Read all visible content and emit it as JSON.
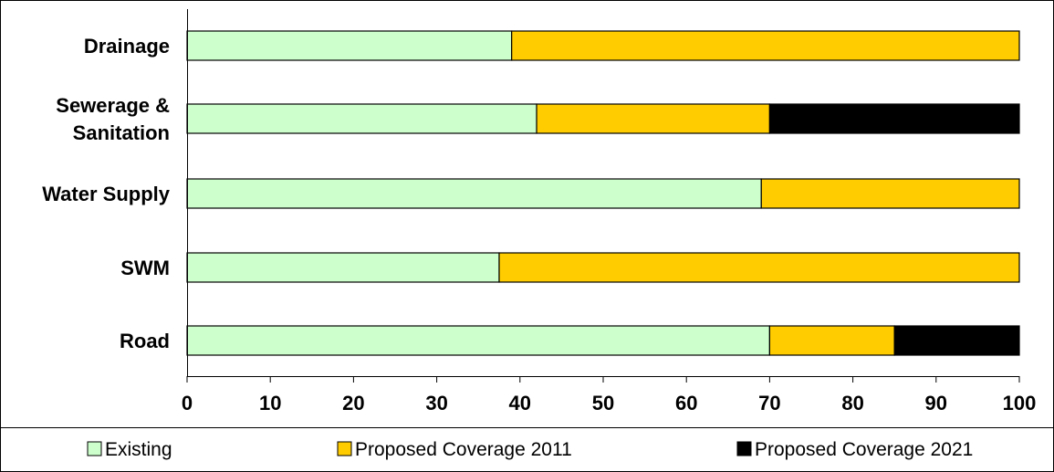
{
  "chart_data": {
    "type": "bar",
    "orientation": "horizontal",
    "stacked": true,
    "categories": [
      "Drainage",
      "Sewerage & Sanitation",
      "Water Supply",
      "SWM",
      "Road"
    ],
    "category_lines": [
      [
        "Drainage"
      ],
      [
        "Sewerage &",
        "Sanitation"
      ],
      [
        "Water Supply"
      ],
      [
        "SWM"
      ],
      [
        "Road"
      ]
    ],
    "series": [
      {
        "name": "Existing",
        "color": "#ccffcc",
        "values": [
          39,
          42,
          69,
          37.5,
          70
        ]
      },
      {
        "name": "Proposed Coverage 2011",
        "color": "#ffcc00",
        "values": [
          61,
          28,
          31,
          62.5,
          15
        ]
      },
      {
        "name": "Proposed Coverage 2021",
        "color": "#000000",
        "values": [
          0,
          30,
          0,
          0,
          15
        ]
      }
    ],
    "x_ticks": [
      "0",
      "10",
      "20",
      "30",
      "40",
      "50",
      "60",
      "70",
      "80",
      "90",
      "100"
    ],
    "xlim": [
      0,
      100
    ],
    "grid": false,
    "legend_position": "bottom"
  }
}
